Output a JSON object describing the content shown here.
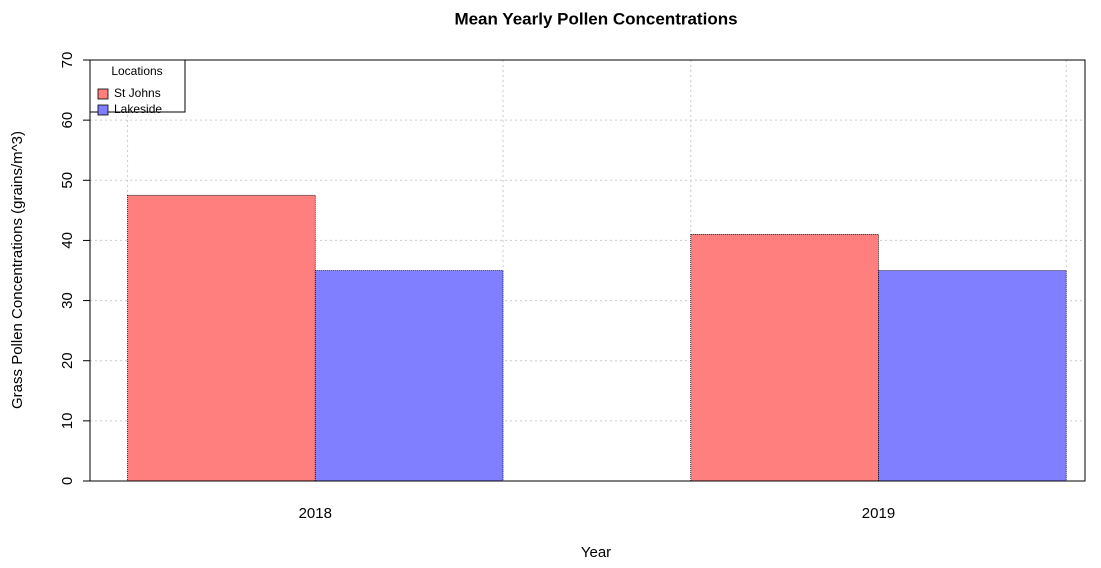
{
  "chart_data": {
    "type": "bar",
    "title": "Mean Yearly Pollen Concentrations",
    "x_label": "Year",
    "y_label": "Grass Pollen Concentrations (grains/m^3)",
    "categories": [
      "2018",
      "2019"
    ],
    "series": [
      {
        "name": "St Johns",
        "color": "#ff7f7f",
        "values": [
          47.5,
          41
        ]
      },
      {
        "name": "Lakeside",
        "color": "#7f7fff",
        "values": [
          35,
          35
        ]
      }
    ],
    "legend_title": "Locations",
    "legend": "top-left",
    "ylim": [
      0,
      70
    ],
    "yticks": [
      0,
      10,
      20,
      30,
      40,
      50,
      60,
      70
    ],
    "grid": true
  }
}
